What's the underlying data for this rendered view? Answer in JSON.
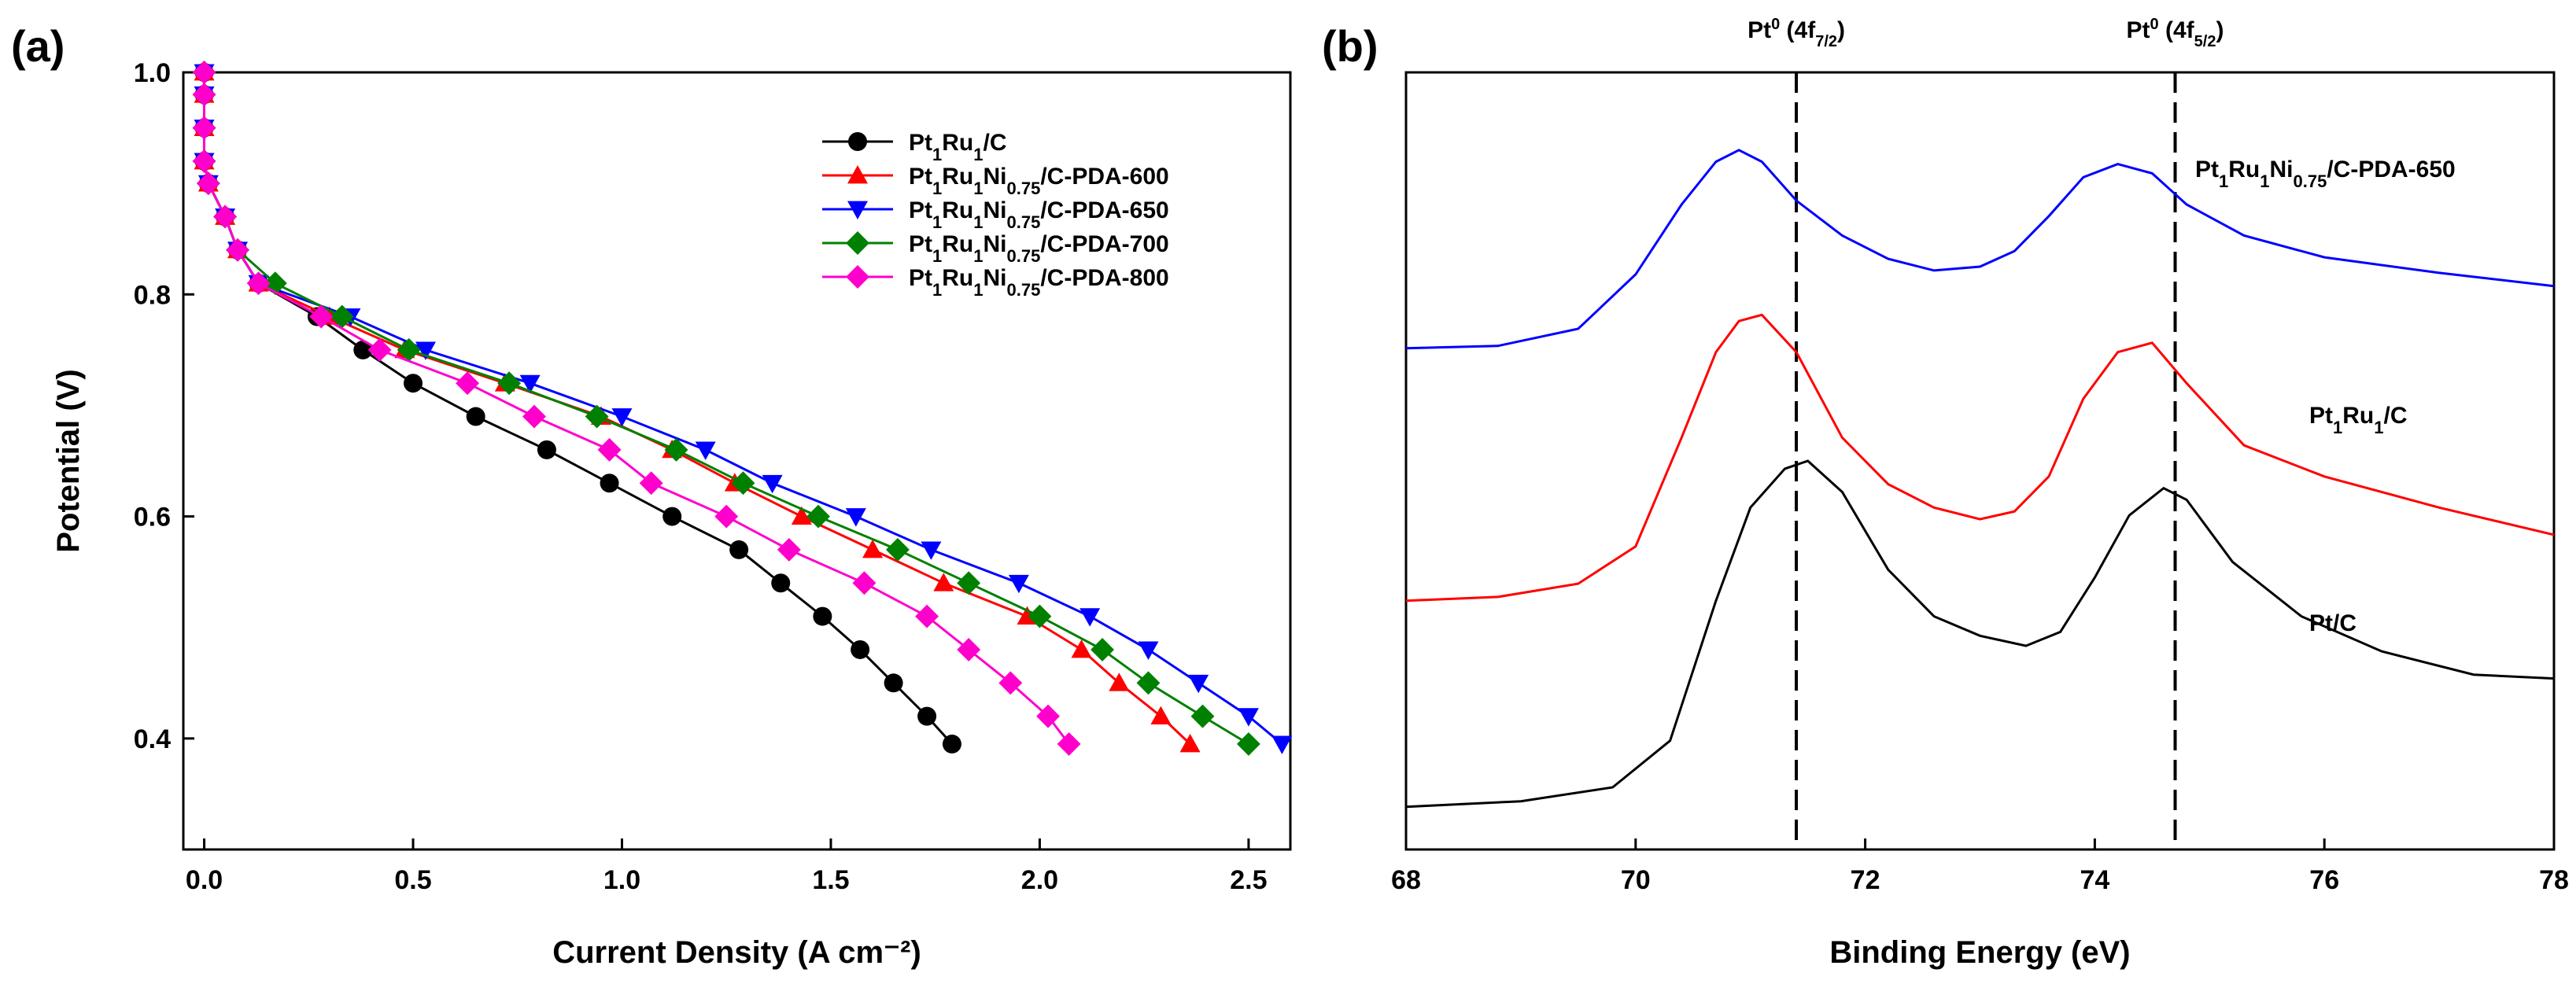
{
  "chart_data": [
    {
      "panel": "(a)",
      "type": "line",
      "xlabel": "Current Density (A cm⁻²)",
      "ylabel": "Potential (V)",
      "xlim": [
        -0.05,
        2.6
      ],
      "ylim": [
        0.3,
        1.0
      ],
      "xticks": [
        0.0,
        0.5,
        1.0,
        1.5,
        2.0,
        2.5
      ],
      "xtick_labels": [
        "0.0",
        "0.5",
        "1.0",
        "1.5",
        "2.0",
        "2.5"
      ],
      "yticks": [
        0.4,
        0.6,
        0.8,
        1.0
      ],
      "ytick_labels": [
        "0.4",
        "0.6",
        "0.8",
        "1.0"
      ],
      "legend_position": "top-right",
      "series": [
        {
          "legend": {
            "base": "Pt",
            "s1": "1",
            "mid1": "Ru",
            "s2": "1",
            "mid2": "",
            "s3": "",
            "tail": "/C"
          },
          "color": "#000000",
          "marker": "circle",
          "points": [
            [
              0.0,
              1.0
            ],
            [
              0.0,
              0.98
            ],
            [
              0.0,
              0.95
            ],
            [
              0.0,
              0.92
            ],
            [
              0.01,
              0.9
            ],
            [
              0.05,
              0.87
            ],
            [
              0.08,
              0.84
            ],
            [
              0.13,
              0.81
            ],
            [
              0.27,
              0.78
            ],
            [
              0.38,
              0.75
            ],
            [
              0.5,
              0.72
            ],
            [
              0.65,
              0.69
            ],
            [
              0.82,
              0.66
            ],
            [
              0.97,
              0.63
            ],
            [
              1.12,
              0.6
            ],
            [
              1.28,
              0.57
            ],
            [
              1.38,
              0.54
            ],
            [
              1.48,
              0.51
            ],
            [
              1.57,
              0.48
            ],
            [
              1.65,
              0.45
            ],
            [
              1.73,
              0.42
            ],
            [
              1.79,
              0.395
            ]
          ]
        },
        {
          "legend": {
            "base": "Pt",
            "s1": "1",
            "mid1": "Ru",
            "s2": "1",
            "mid2": "Ni",
            "s3": "0.75",
            "tail": "/C-PDA-600"
          },
          "color": "#ff0000",
          "marker": "triangle-up",
          "points": [
            [
              0.0,
              1.0
            ],
            [
              0.0,
              0.98
            ],
            [
              0.0,
              0.95
            ],
            [
              0.0,
              0.92
            ],
            [
              0.01,
              0.9
            ],
            [
              0.05,
              0.87
            ],
            [
              0.08,
              0.84
            ],
            [
              0.13,
              0.81
            ],
            [
              0.3,
              0.78
            ],
            [
              0.48,
              0.75
            ],
            [
              0.72,
              0.72
            ],
            [
              0.95,
              0.69
            ],
            [
              1.12,
              0.66
            ],
            [
              1.27,
              0.63
            ],
            [
              1.43,
              0.6
            ],
            [
              1.6,
              0.57
            ],
            [
              1.77,
              0.54
            ],
            [
              1.97,
              0.51
            ],
            [
              2.1,
              0.48
            ],
            [
              2.19,
              0.45
            ],
            [
              2.29,
              0.42
            ],
            [
              2.36,
              0.395
            ]
          ]
        },
        {
          "legend": {
            "base": "Pt",
            "s1": "1",
            "mid1": "Ru",
            "s2": "1",
            "mid2": "Ni",
            "s3": "0.75",
            "tail": "/C-PDA-650"
          },
          "color": "#0000ff",
          "marker": "triangle-down",
          "points": [
            [
              0.0,
              1.0
            ],
            [
              0.0,
              0.98
            ],
            [
              0.0,
              0.95
            ],
            [
              0.0,
              0.92
            ],
            [
              0.01,
              0.9
            ],
            [
              0.05,
              0.87
            ],
            [
              0.08,
              0.84
            ],
            [
              0.13,
              0.81
            ],
            [
              0.35,
              0.78
            ],
            [
              0.53,
              0.75
            ],
            [
              0.78,
              0.72
            ],
            [
              1.0,
              0.69
            ],
            [
              1.2,
              0.66
            ],
            [
              1.36,
              0.63
            ],
            [
              1.56,
              0.6
            ],
            [
              1.74,
              0.57
            ],
            [
              1.95,
              0.54
            ],
            [
              2.12,
              0.51
            ],
            [
              2.26,
              0.48
            ],
            [
              2.38,
              0.45
            ],
            [
              2.5,
              0.42
            ],
            [
              2.58,
              0.395
            ]
          ]
        },
        {
          "legend": {
            "base": "Pt",
            "s1": "1",
            "mid1": "Ru",
            "s2": "1",
            "mid2": "Ni",
            "s3": "0.75",
            "tail": "/C-PDA-700"
          },
          "color": "#008000",
          "marker": "diamond",
          "points": [
            [
              0.0,
              1.0
            ],
            [
              0.0,
              0.98
            ],
            [
              0.0,
              0.95
            ],
            [
              0.0,
              0.92
            ],
            [
              0.01,
              0.9
            ],
            [
              0.05,
              0.87
            ],
            [
              0.08,
              0.84
            ],
            [
              0.17,
              0.81
            ],
            [
              0.33,
              0.78
            ],
            [
              0.49,
              0.75
            ],
            [
              0.73,
              0.72
            ],
            [
              0.94,
              0.69
            ],
            [
              1.13,
              0.66
            ],
            [
              1.29,
              0.63
            ],
            [
              1.47,
              0.6
            ],
            [
              1.66,
              0.57
            ],
            [
              1.83,
              0.54
            ],
            [
              2.0,
              0.51
            ],
            [
              2.15,
              0.48
            ],
            [
              2.26,
              0.45
            ],
            [
              2.39,
              0.42
            ],
            [
              2.5,
              0.395
            ]
          ]
        },
        {
          "legend": {
            "base": "Pt",
            "s1": "1",
            "mid1": "Ru",
            "s2": "1",
            "mid2": "Ni",
            "s3": "0.75",
            "tail": "/C-PDA-800"
          },
          "color": "#ff00cc",
          "marker": "diamond",
          "points": [
            [
              0.0,
              1.0
            ],
            [
              0.0,
              0.98
            ],
            [
              0.0,
              0.95
            ],
            [
              0.0,
              0.92
            ],
            [
              0.01,
              0.9
            ],
            [
              0.05,
              0.87
            ],
            [
              0.08,
              0.84
            ],
            [
              0.13,
              0.81
            ],
            [
              0.28,
              0.78
            ],
            [
              0.42,
              0.75
            ],
            [
              0.63,
              0.72
            ],
            [
              0.79,
              0.69
            ],
            [
              0.97,
              0.66
            ],
            [
              1.07,
              0.63
            ],
            [
              1.25,
              0.6
            ],
            [
              1.4,
              0.57
            ],
            [
              1.58,
              0.54
            ],
            [
              1.73,
              0.51
            ],
            [
              1.83,
              0.48
            ],
            [
              1.93,
              0.45
            ],
            [
              2.02,
              0.42
            ],
            [
              2.07,
              0.395
            ]
          ]
        }
      ]
    },
    {
      "panel": "(b)",
      "type": "line",
      "xlabel": "Binding Energy (eV)",
      "ylabel": "",
      "xlim": [
        68,
        78
      ],
      "ylim": [
        0,
        1
      ],
      "xticks": [
        68,
        70,
        72,
        74,
        76,
        78
      ],
      "xtick_labels": [
        "68",
        "70",
        "72",
        "74",
        "76",
        "78"
      ],
      "reference_lines": [
        {
          "x": 71.4,
          "label": {
            "base": "Pt",
            "sup": "0",
            "pre": " (4f",
            "sub": "7/2",
            "post": ")"
          }
        },
        {
          "x": 74.7,
          "label": {
            "base": "Pt",
            "sup": "0",
            "pre": " (4f",
            "sub": "5/2",
            "post": ")"
          }
        }
      ],
      "series": [
        {
          "label": {
            "base": "Pt",
            "s1": "1",
            "mid1": "Ru",
            "s2": "1",
            "mid2": "Ni",
            "s3": "0.75",
            "tail": "/C-PDA-650"
          },
          "color": "#0000ff",
          "points": [
            [
              68.0,
              0.645
            ],
            [
              68.8,
              0.648
            ],
            [
              69.5,
              0.67
            ],
            [
              70.0,
              0.74
            ],
            [
              70.4,
              0.83
            ],
            [
              70.7,
              0.885
            ],
            [
              70.9,
              0.9
            ],
            [
              71.1,
              0.885
            ],
            [
              71.4,
              0.835
            ],
            [
              71.8,
              0.79
            ],
            [
              72.2,
              0.76
            ],
            [
              72.6,
              0.745
            ],
            [
              73.0,
              0.75
            ],
            [
              73.3,
              0.77
            ],
            [
              73.6,
              0.815
            ],
            [
              73.9,
              0.865
            ],
            [
              74.2,
              0.882
            ],
            [
              74.5,
              0.87
            ],
            [
              74.8,
              0.83
            ],
            [
              75.3,
              0.79
            ],
            [
              76.0,
              0.762
            ],
            [
              77.0,
              0.742
            ],
            [
              78.0,
              0.725
            ]
          ]
        },
        {
          "label": {
            "base": "Pt",
            "s1": "1",
            "mid1": "Ru",
            "s2": "1",
            "mid2": "",
            "s3": "",
            "tail": "/C"
          },
          "color": "#ff0000",
          "points": [
            [
              68.0,
              0.32
            ],
            [
              68.8,
              0.325
            ],
            [
              69.5,
              0.342
            ],
            [
              70.0,
              0.39
            ],
            [
              70.4,
              0.53
            ],
            [
              70.7,
              0.64
            ],
            [
              70.9,
              0.68
            ],
            [
              71.1,
              0.688
            ],
            [
              71.4,
              0.64
            ],
            [
              71.8,
              0.53
            ],
            [
              72.2,
              0.47
            ],
            [
              72.6,
              0.44
            ],
            [
              73.0,
              0.425
            ],
            [
              73.3,
              0.435
            ],
            [
              73.6,
              0.48
            ],
            [
              73.9,
              0.58
            ],
            [
              74.2,
              0.64
            ],
            [
              74.5,
              0.652
            ],
            [
              74.8,
              0.6
            ],
            [
              75.3,
              0.52
            ],
            [
              76.0,
              0.48
            ],
            [
              77.0,
              0.44
            ],
            [
              78.0,
              0.405
            ]
          ]
        },
        {
          "label": {
            "base": "Pt",
            "s1": "",
            "mid1": "",
            "s2": "",
            "mid2": "",
            "s3": "",
            "tail": "/C"
          },
          "color": "#000000",
          "points": [
            [
              68.0,
              0.055
            ],
            [
              69.0,
              0.062
            ],
            [
              69.8,
              0.08
            ],
            [
              70.3,
              0.14
            ],
            [
              70.7,
              0.32
            ],
            [
              71.0,
              0.44
            ],
            [
              71.3,
              0.49
            ],
            [
              71.5,
              0.5
            ],
            [
              71.8,
              0.46
            ],
            [
              72.2,
              0.36
            ],
            [
              72.6,
              0.3
            ],
            [
              73.0,
              0.275
            ],
            [
              73.4,
              0.262
            ],
            [
              73.7,
              0.28
            ],
            [
              74.0,
              0.35
            ],
            [
              74.3,
              0.43
            ],
            [
              74.6,
              0.465
            ],
            [
              74.8,
              0.45
            ],
            [
              75.2,
              0.37
            ],
            [
              75.8,
              0.3
            ],
            [
              76.5,
              0.255
            ],
            [
              77.3,
              0.225
            ],
            [
              78.0,
              0.22
            ]
          ]
        }
      ]
    }
  ]
}
